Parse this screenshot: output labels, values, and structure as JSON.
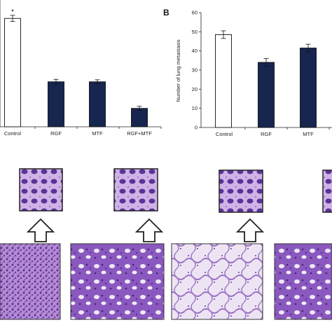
{
  "panel_b_letter": "B",
  "chart_data": [
    {
      "type": "bar",
      "panel": "A",
      "categories": [
        "Control",
        "RGF",
        "MTF",
        "RGF+MTF"
      ],
      "values": [
        53,
        22,
        22,
        9
      ],
      "errors": [
        1.5,
        1.2,
        1.0,
        1.0
      ],
      "bar_colors": [
        "#ffffff",
        "#16264f",
        "#16264f",
        "#16264f"
      ],
      "annotations": [
        {
          "category": "Control",
          "text": "*"
        }
      ],
      "ylim": [
        0,
        62
      ],
      "ylabel": ""
    },
    {
      "type": "bar",
      "panel": "B",
      "categories": [
        "Control",
        "RGF",
        "MTF"
      ],
      "values": [
        48.5,
        34,
        41.5
      ],
      "errors": [
        2,
        2,
        2
      ],
      "bar_colors": [
        "#ffffff",
        "#16264f",
        "#16264f"
      ],
      "ylim": [
        0,
        60
      ],
      "yticks": [
        0,
        10,
        20,
        30,
        40,
        50,
        60
      ],
      "ylabel": "Number of lung metastasis"
    }
  ],
  "histology": {
    "zoom_insets": [
      "inset-1",
      "inset-2",
      "inset-3",
      "inset-4"
    ],
    "main_images": [
      "section-1",
      "section-2",
      "section-3",
      "section-4"
    ]
  }
}
